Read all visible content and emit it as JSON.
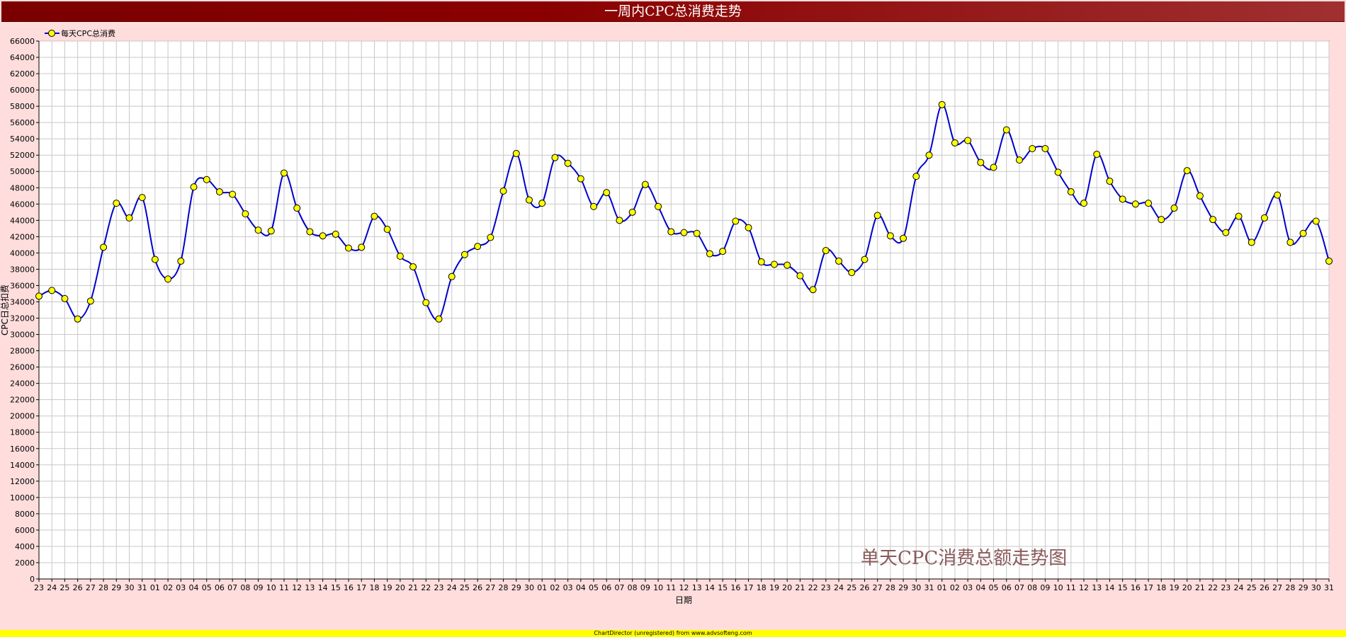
{
  "chart_data": {
    "type": "line",
    "title": "一周内CPC总消费走势",
    "ylabel": "CPC日总扣费",
    "xlabel": "日期",
    "annotation": "单天CPC消费总额走势图",
    "ylim": [
      0,
      66000
    ],
    "y_ticks": [
      0,
      2000,
      4000,
      6000,
      8000,
      10000,
      12000,
      14000,
      16000,
      18000,
      20000,
      22000,
      24000,
      26000,
      28000,
      30000,
      32000,
      34000,
      36000,
      38000,
      40000,
      42000,
      44000,
      46000,
      48000,
      50000,
      52000,
      54000,
      56000,
      58000,
      60000,
      62000,
      64000,
      66000
    ],
    "grid": true,
    "legend_position": "top-left",
    "categories": [
      "23",
      "24",
      "25",
      "26",
      "27",
      "28",
      "29",
      "30",
      "31",
      "01",
      "02",
      "03",
      "04",
      "05",
      "06",
      "07",
      "08",
      "09",
      "10",
      "11",
      "12",
      "13",
      "14",
      "15",
      "16",
      "17",
      "18",
      "19",
      "20",
      "21",
      "22",
      "23",
      "24",
      "25",
      "26",
      "27",
      "28",
      "29",
      "30",
      "01",
      "02",
      "03",
      "04",
      "05",
      "06",
      "07",
      "08",
      "09",
      "10",
      "11",
      "12",
      "13",
      "14",
      "15",
      "16",
      "17",
      "18",
      "19",
      "20",
      "21",
      "22",
      "23",
      "24",
      "25",
      "26",
      "27",
      "28",
      "29",
      "30",
      "31",
      "01",
      "02",
      "03",
      "04",
      "05",
      "06",
      "07",
      "08",
      "09",
      "10",
      "11",
      "12",
      "13",
      "14",
      "15",
      "16",
      "17",
      "18",
      "19",
      "20",
      "21",
      "22",
      "23",
      "24",
      "25",
      "26",
      "27",
      "28",
      "29",
      "30",
      "31"
    ],
    "series": [
      {
        "name": "每天CPC总消费",
        "line_color": "#0000cc",
        "marker_color": "#ffff00",
        "values": [
          34700,
          35400,
          34400,
          31900,
          34100,
          40700,
          46100,
          44300,
          46800,
          39200,
          36800,
          39000,
          48100,
          49000,
          47500,
          47200,
          44800,
          42800,
          42700,
          49800,
          45500,
          42600,
          42100,
          42300,
          40600,
          40700,
          44500,
          42900,
          39600,
          38300,
          33900,
          31900,
          37100,
          39800,
          40800,
          41900,
          47600,
          52200,
          46500,
          46100,
          51700,
          51000,
          49100,
          45700,
          47400,
          44000,
          45000,
          48400,
          45700,
          42600,
          42500,
          42400,
          39900,
          40200,
          43900,
          43100,
          38900,
          38600,
          38500,
          37200,
          35500,
          40300,
          39000,
          37600,
          39200,
          44600,
          42100,
          41800,
          49400,
          52000,
          58200,
          53500,
          53800,
          51100,
          50500,
          55100,
          51400,
          52800,
          52800,
          49900,
          47500,
          46100,
          52100,
          48800,
          46600,
          46000,
          46100,
          44100,
          45500,
          50100,
          47000,
          44100,
          42500,
          44500,
          41300,
          44300,
          47100,
          41300,
          42400,
          43900,
          39000
        ]
      }
    ]
  },
  "footer": "ChartDirector (unregistered) from www.advsofteng.com",
  "colors": {
    "background": "#ffdddd",
    "plot_background": "#ffffff",
    "grid": "#c8c8c8",
    "title_bar": "#7a0000",
    "annotation": "#8a5a5a",
    "footer_background": "#ffff00"
  }
}
